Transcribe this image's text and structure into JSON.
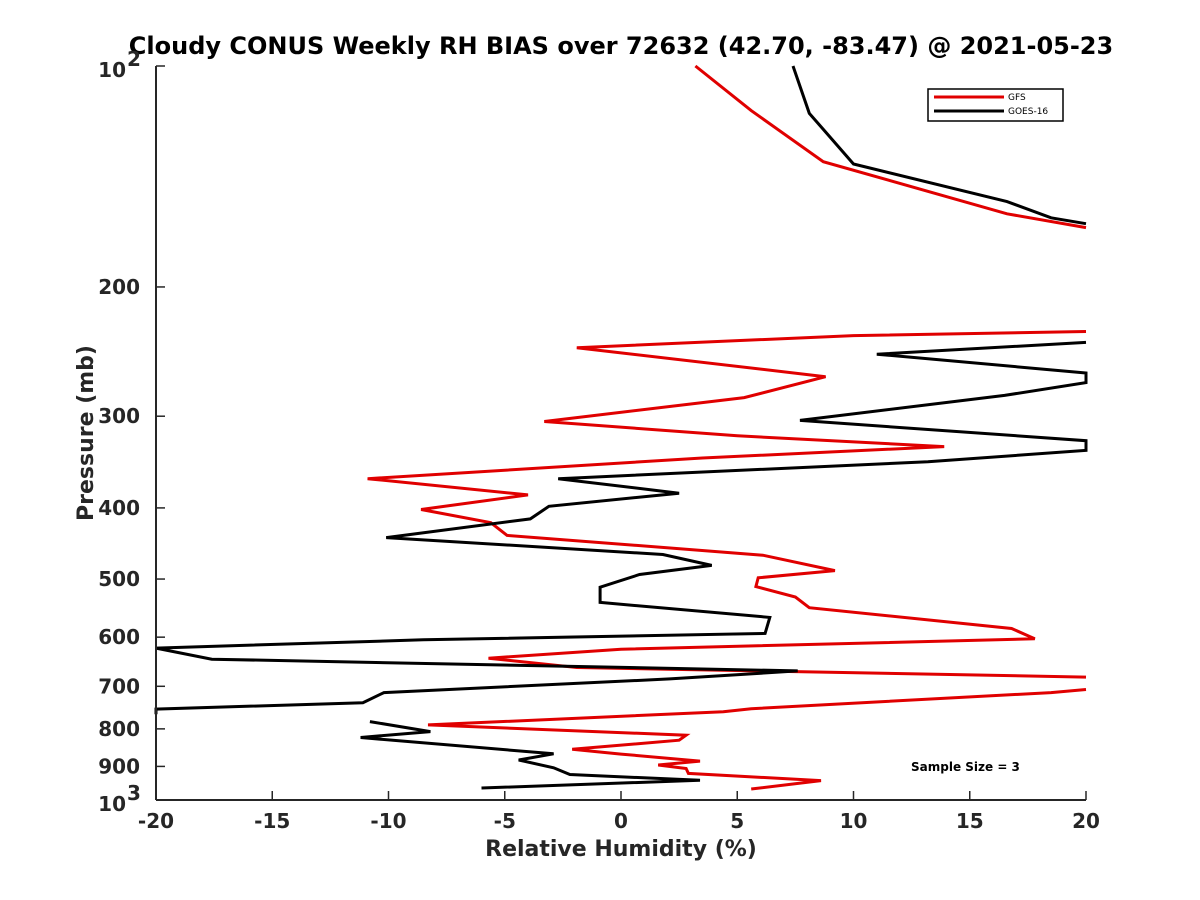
{
  "chart_data": {
    "type": "line",
    "title": "Cloudy CONUS Weekly RH BIAS over 72632 (42.70, -83.47) @ 2021-05-23",
    "xlabel": "Relative Humidity (%)",
    "ylabel": "Pressure (mb)",
    "xlim": [
      -20,
      20
    ],
    "ylim": [
      100,
      1000
    ],
    "y_scale": "log",
    "y_reversed": true,
    "grid": false,
    "legend_position": "top-right",
    "x_ticks": [
      {
        "value": -20,
        "label": "-20"
      },
      {
        "value": -15,
        "label": "-15"
      },
      {
        "value": -10,
        "label": "-10"
      },
      {
        "value": -5,
        "label": "-5"
      },
      {
        "value": 0,
        "label": "0"
      },
      {
        "value": 5,
        "label": "5"
      },
      {
        "value": 10,
        "label": "10"
      },
      {
        "value": 15,
        "label": "15"
      },
      {
        "value": 20,
        "label": "20"
      }
    ],
    "y_ticks": [
      {
        "value": 100,
        "base": "10",
        "exp": "2"
      },
      {
        "value": 200,
        "label": "200"
      },
      {
        "value": 300,
        "label": "300"
      },
      {
        "value": 400,
        "label": "400"
      },
      {
        "value": 500,
        "label": "500"
      },
      {
        "value": 600,
        "label": "600"
      },
      {
        "value": 700,
        "label": "700"
      },
      {
        "value": 800,
        "label": "800"
      },
      {
        "value": 900,
        "label": "900"
      },
      {
        "value": 1000,
        "base": "10",
        "exp": "3"
      }
    ],
    "series": [
      {
        "name": "GFS",
        "color": "#e00000",
        "points": [
          [
            3.2,
            100
          ],
          [
            5.6,
            115
          ],
          [
            8.7,
            135
          ],
          [
            16.6,
            159
          ],
          [
            20.0,
            166
          ]
        ],
        "segments": [
          [
            [
              20.0,
              230
            ],
            [
              10.0,
              233
            ],
            [
              -1.9,
              242
            ],
            [
              8.8,
              265
            ],
            [
              5.3,
              283
            ],
            [
              -3.3,
              305
            ],
            [
              5.0,
              319
            ],
            [
              13.9,
              330
            ],
            [
              3.5,
              342
            ],
            [
              -10.9,
              365
            ],
            [
              -4.0,
              384
            ],
            [
              -8.6,
              402
            ],
            [
              -5.6,
              419
            ],
            [
              -4.9,
              436
            ],
            [
              6.1,
              464
            ],
            [
              9.2,
              487
            ],
            [
              5.9,
              498
            ],
            [
              5.8,
              512
            ],
            [
              7.5,
              529
            ],
            [
              8.1,
              547
            ],
            [
              16.8,
              584
            ],
            [
              17.8,
              603
            ],
            [
              0.0,
              623
            ],
            [
              -5.7,
              641
            ],
            [
              -1.9,
              660
            ],
            [
              20.0,
              680
            ]
          ],
          [
            [
              20.0,
              707
            ],
            [
              18.5,
              714
            ],
            [
              5.6,
              751
            ],
            [
              4.4,
              758
            ],
            [
              -8.3,
              790
            ],
            [
              2.8,
              816
            ],
            [
              2.5,
              829
            ],
            [
              -2.1,
              853
            ],
            [
              0.0,
              866
            ],
            [
              3.4,
              885
            ],
            [
              1.6,
              896
            ],
            [
              2.8,
              906
            ],
            [
              2.9,
              920
            ],
            [
              8.6,
              941
            ],
            [
              5.6,
              966
            ]
          ]
        ]
      },
      {
        "name": "GOES-16",
        "color": "#000000",
        "points": [
          [
            7.4,
            100
          ],
          [
            8.1,
            116
          ],
          [
            10.0,
            136
          ],
          [
            16.6,
            153
          ],
          [
            18.5,
            161
          ],
          [
            20.0,
            164
          ]
        ],
        "segments": [
          [
            [
              20.0,
              238
            ],
            [
              11.0,
              247
            ],
            [
              20.0,
              262
            ],
            [
              20.0,
              270
            ],
            [
              16.5,
              281
            ],
            [
              7.7,
              304
            ],
            [
              20.0,
              324
            ],
            [
              20.0,
              334
            ],
            [
              13.2,
              346
            ],
            [
              -2.7,
              365
            ],
            [
              2.5,
              382
            ],
            [
              -3.1,
              398
            ],
            [
              -3.9,
              414
            ],
            [
              -10.1,
              439
            ],
            [
              1.8,
              463
            ],
            [
              3.9,
              479
            ],
            [
              0.8,
              493
            ],
            [
              -0.9,
              513
            ],
            [
              -0.9,
              538
            ],
            [
              6.4,
              564
            ],
            [
              6.2,
              593
            ],
            [
              -8.5,
              605
            ],
            [
              -20.0,
              621
            ],
            [
              -17.6,
              643
            ],
            [
              7.6,
              667
            ],
            [
              2.1,
              684
            ],
            [
              -10.2,
              714
            ],
            [
              -11.1,
              737
            ],
            [
              -20.0,
              752
            ],
            [
              -20.0,
              764
            ]
          ],
          [
            [
              -10.8,
              782
            ],
            [
              -8.2,
              807
            ],
            [
              -11.2,
              822
            ],
            [
              -2.9,
              865
            ],
            [
              -4.4,
              882
            ],
            [
              -2.9,
              904
            ],
            [
              -2.2,
              923
            ],
            [
              3.4,
              940
            ],
            [
              -6.0,
              963
            ]
          ]
        ]
      }
    ],
    "annotations": [
      {
        "text": "Sample Size = 3"
      }
    ]
  }
}
